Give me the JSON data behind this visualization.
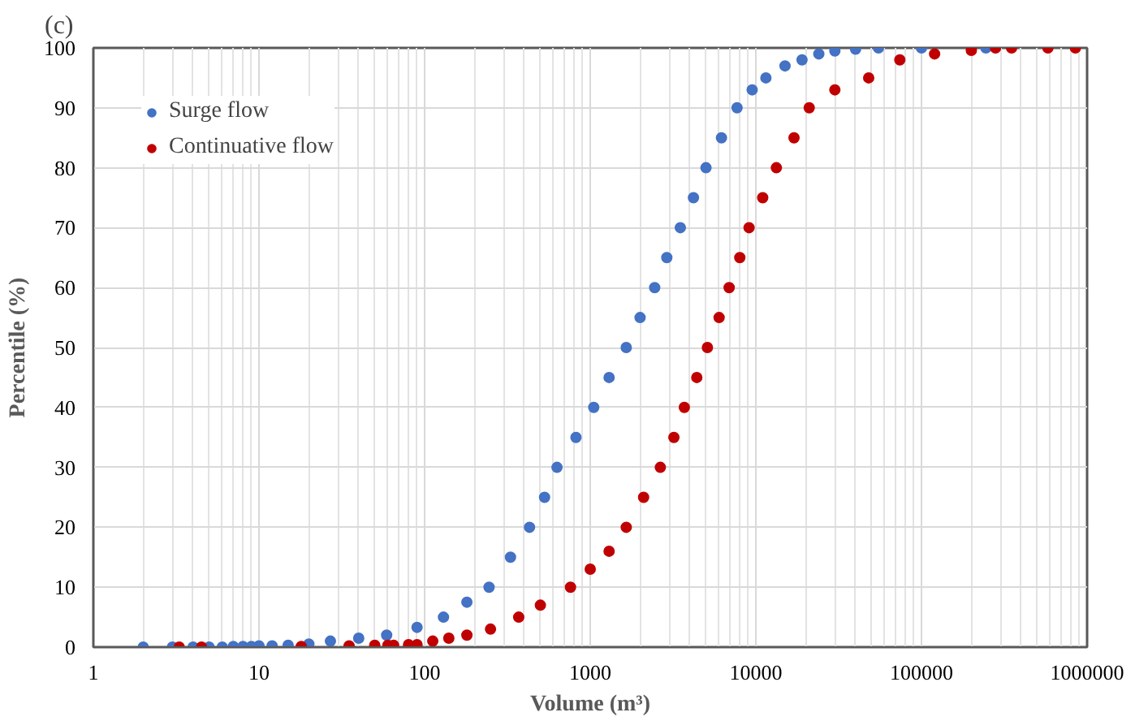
{
  "chart_data": {
    "type": "scatter",
    "title": "(c)",
    "xlabel": "Volume (m³)",
    "ylabel": "Percentile (%)",
    "log": "x",
    "xlim": [
      1,
      1000000
    ],
    "ylim": [
      0,
      100
    ],
    "xticks": [
      1,
      10,
      100,
      1000,
      10000,
      100000,
      1000000
    ],
    "yticks": [
      0,
      10,
      20,
      30,
      40,
      50,
      60,
      70,
      80,
      90,
      100
    ],
    "grid": true,
    "legend": "top left",
    "marker": "circle",
    "series": [
      {
        "name": "Surge flow",
        "color": "#4472c4",
        "x": [
          2,
          3,
          4,
          5,
          6,
          7,
          8,
          9,
          10,
          12,
          15,
          20,
          27,
          40,
          59,
          90,
          130,
          180,
          245,
          330,
          430,
          530,
          630,
          820,
          1050,
          1300,
          1650,
          2000,
          2450,
          2900,
          3500,
          4200,
          5000,
          6200,
          7700,
          9500,
          11500,
          15000,
          19000,
          24000,
          30000,
          40000,
          55000,
          100000,
          245000
        ],
        "values": [
          0,
          0,
          0,
          0,
          0,
          0.1,
          0.1,
          0.1,
          0.2,
          0.2,
          0.3,
          0.5,
          1,
          1.5,
          2,
          3.3,
          5,
          7.5,
          10,
          15,
          20,
          25,
          30,
          35,
          40,
          45,
          50,
          55,
          60,
          65,
          70,
          75,
          80,
          85,
          90,
          93,
          95,
          97,
          98,
          99,
          99.5,
          99.8,
          100,
          100,
          100
        ]
      },
      {
        "name": "Continuative flow",
        "color": "#c00000",
        "x": [
          3.3,
          4.5,
          18,
          35,
          50,
          60,
          65,
          80,
          90,
          112,
          140,
          180,
          250,
          370,
          500,
          760,
          1000,
          1300,
          1650,
          2100,
          2650,
          3200,
          3700,
          4400,
          5100,
          6000,
          6900,
          8000,
          9100,
          11000,
          13300,
          17000,
          21000,
          30000,
          48000,
          74000,
          120000,
          200000,
          280000,
          350000,
          580000,
          850000
        ],
        "values": [
          0,
          0,
          0.1,
          0.2,
          0.3,
          0.3,
          0.3,
          0.4,
          0.4,
          1,
          1.5,
          2,
          3,
          5,
          7,
          10,
          13,
          16,
          20,
          25,
          30,
          35,
          40,
          45,
          50,
          55,
          60,
          65,
          70,
          75,
          80,
          85,
          90,
          93,
          95,
          98,
          99,
          99.6,
          100,
          100,
          100,
          100
        ]
      }
    ]
  }
}
